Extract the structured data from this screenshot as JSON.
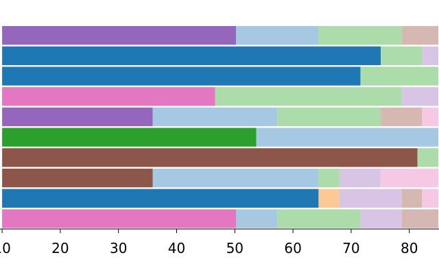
{
  "chart_data": {
    "type": "bar",
    "orientation": "horizontal",
    "stacked": true,
    "title": "",
    "xlabel": "",
    "ylabel": "",
    "xlim": [
      10,
      85
    ],
    "x_ticks": [
      10,
      20,
      30,
      40,
      50,
      60,
      70,
      80
    ],
    "x_tick_labels": [
      "10",
      "20",
      "30",
      "40",
      "50",
      "60",
      "70",
      "80"
    ],
    "grid": false,
    "legend": "none",
    "rows": [
      {
        "segments": [
          {
            "start": 10,
            "end": 50.2,
            "color": "#9467bd"
          },
          {
            "start": 50.2,
            "end": 64.4,
            "color": "#a6c8e2"
          },
          {
            "start": 64.4,
            "end": 78.7,
            "color": "#abdcaa"
          },
          {
            "start": 78.7,
            "end": 85,
            "color": "#d5b8b2"
          }
        ]
      },
      {
        "segments": [
          {
            "start": 10,
            "end": 75.1,
            "color": "#1f77b4"
          },
          {
            "start": 75.1,
            "end": 82.2,
            "color": "#abdcaa"
          },
          {
            "start": 82.2,
            "end": 85,
            "color": "#d8c4e5"
          }
        ]
      },
      {
        "segments": [
          {
            "start": 10,
            "end": 71.6,
            "color": "#1f77b4"
          },
          {
            "start": 71.6,
            "end": 85,
            "color": "#abdcaa"
          }
        ]
      },
      {
        "segments": [
          {
            "start": 10,
            "end": 46.6,
            "color": "#e377c2"
          },
          {
            "start": 46.6,
            "end": 78.7,
            "color": "#abdcaa"
          },
          {
            "start": 78.7,
            "end": 85,
            "color": "#d8c4e5"
          }
        ]
      },
      {
        "segments": [
          {
            "start": 10,
            "end": 35.9,
            "color": "#9467bd"
          },
          {
            "start": 35.9,
            "end": 57.3,
            "color": "#a6c8e2"
          },
          {
            "start": 57.3,
            "end": 75.1,
            "color": "#abdcaa"
          },
          {
            "start": 75.1,
            "end": 82.2,
            "color": "#d5b8b2"
          },
          {
            "start": 82.2,
            "end": 85,
            "color": "#f5c9e4"
          }
        ]
      },
      {
        "segments": [
          {
            "start": 10,
            "end": 53.7,
            "color": "#2ca02c"
          },
          {
            "start": 53.7,
            "end": 85,
            "color": "#a6c8e2"
          }
        ]
      },
      {
        "segments": [
          {
            "start": 10,
            "end": 81.4,
            "color": "#8c564b"
          },
          {
            "start": 81.4,
            "end": 85,
            "color": "#abdcaa"
          }
        ]
      },
      {
        "segments": [
          {
            "start": 10,
            "end": 35.9,
            "color": "#8c564b"
          },
          {
            "start": 35.9,
            "end": 64.4,
            "color": "#a6c8e2"
          },
          {
            "start": 64.4,
            "end": 68.0,
            "color": "#abdcaa"
          },
          {
            "start": 68.0,
            "end": 75.1,
            "color": "#d8c4e5"
          },
          {
            "start": 75.1,
            "end": 85,
            "color": "#f5c9e4"
          }
        ]
      },
      {
        "segments": [
          {
            "start": 10,
            "end": 64.4,
            "color": "#1f77b4"
          },
          {
            "start": 64.4,
            "end": 68.0,
            "color": "#fcc894"
          },
          {
            "start": 68.0,
            "end": 78.7,
            "color": "#d8c4e5"
          },
          {
            "start": 78.7,
            "end": 82.2,
            "color": "#d5b8b2"
          },
          {
            "start": 82.2,
            "end": 85,
            "color": "#f5c9e4"
          }
        ]
      },
      {
        "segments": [
          {
            "start": 10,
            "end": 50.2,
            "color": "#e377c2"
          },
          {
            "start": 50.2,
            "end": 57.3,
            "color": "#a6c8e2"
          },
          {
            "start": 57.3,
            "end": 71.6,
            "color": "#abdcaa"
          },
          {
            "start": 71.6,
            "end": 78.7,
            "color": "#d8c4e5"
          },
          {
            "start": 78.7,
            "end": 85,
            "color": "#d5b8b2"
          }
        ]
      }
    ]
  }
}
